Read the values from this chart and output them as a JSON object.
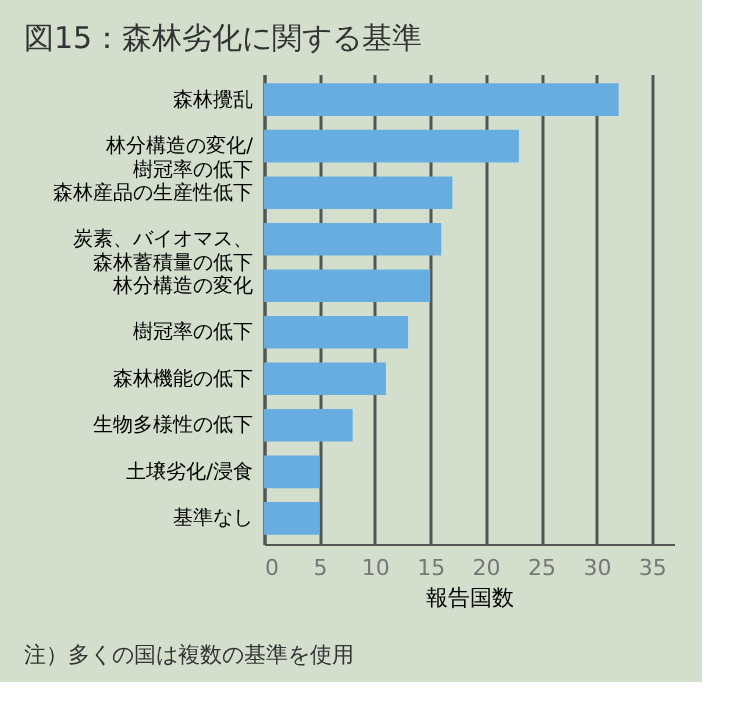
{
  "chart_data": {
    "type": "bar",
    "orientation": "horizontal",
    "title": "図15：森林劣化に関する基準",
    "categories": [
      "森林攪乱",
      "林分構造の変化/樹冠率の低下",
      "森林産品の生産性低下",
      "炭素、バイオマス、森林蓄積量の低下",
      "林分構造の変化",
      "樹冠率の低下",
      "森林機能の低下",
      "生物多様性の低下",
      "土壌劣化/浸食",
      "基準なし"
    ],
    "values": [
      32,
      23,
      17,
      16,
      15,
      13,
      11,
      8,
      5,
      5
    ],
    "color": "#68ade0",
    "xlim": [
      0,
      37
    ],
    "xticks": [
      0,
      5,
      10,
      15,
      20,
      25,
      30,
      35
    ],
    "xlabel": "報告国数",
    "grid": "x",
    "annotations": [
      "注）多くの国は複数の基準を使用"
    ]
  }
}
